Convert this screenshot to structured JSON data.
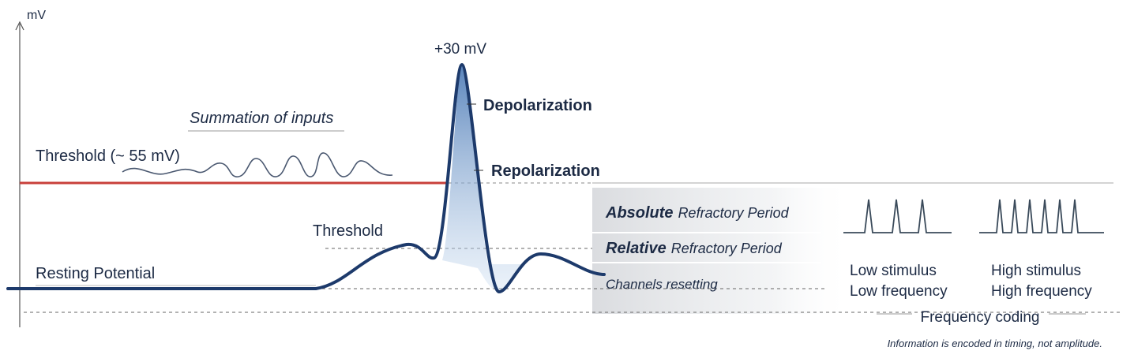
{
  "axis_label": "mV",
  "peak_label": "+30 mV",
  "depolarization": "Depolarization",
  "repolarization": "Repolarization",
  "summation": "Summation of inputs",
  "threshold_line_label": "Threshold (~ 55 mV)",
  "threshold_label": "Threshold",
  "resting_potential": "Resting Potential",
  "refractory": {
    "absolute": {
      "emphasis": "Absolute",
      "rest": "Refractory Period"
    },
    "relative": {
      "emphasis": "Relative",
      "rest": "Refractory Period"
    },
    "resetting": "Channels resetting"
  },
  "frequency": {
    "low": {
      "line1": "Low stimulus",
      "line2": "Low frequency"
    },
    "high": {
      "line1": "High stimulus",
      "line2": "High frequency"
    },
    "title": "Frequency coding",
    "note": "Information is encoded in timing, not amplitude."
  }
}
